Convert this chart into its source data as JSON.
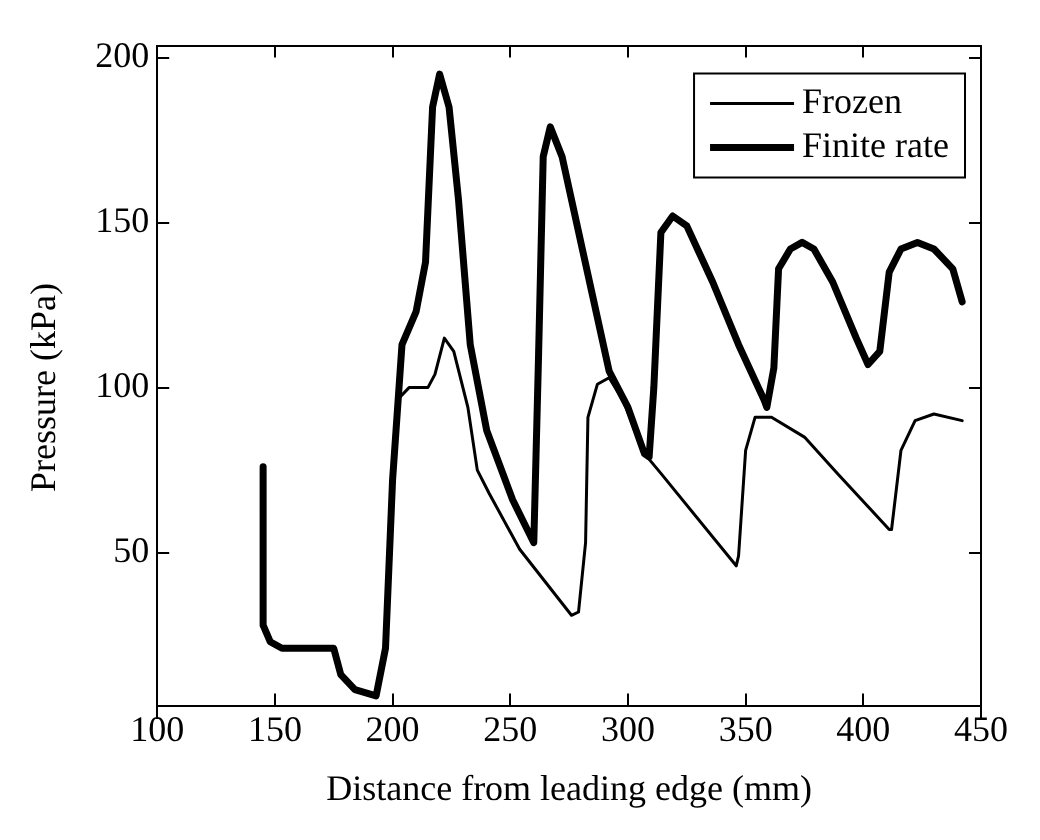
{
  "chart_data": {
    "type": "line",
    "xlabel": "Distance from leading edge (mm)",
    "ylabel": "Pressure (kPa)",
    "xlim": [
      100,
      450
    ],
    "ylim": [
      0,
      200
    ],
    "xticks": [
      100,
      150,
      200,
      250,
      300,
      350,
      400,
      450
    ],
    "yticks": [
      50,
      100,
      150,
      200
    ],
    "grid": false,
    "legend": "top right",
    "marker": "none",
    "line_style": "solid",
    "series": [
      {
        "name": "Frozen",
        "color": "#000000",
        "x": [
          145,
          145,
          148,
          153,
          175,
          178,
          184,
          193,
          197,
          200,
          203,
          207,
          215,
          218,
          222,
          226,
          232,
          236,
          241,
          254,
          276,
          279,
          282,
          283,
          287,
          292,
          298,
          303,
          307,
          314,
          346,
          347,
          350,
          354,
          361,
          375,
          389,
          411,
          412,
          416,
          422,
          430,
          442
        ],
        "values": [
          76,
          28,
          23,
          21,
          21,
          13,
          8.5,
          6.6,
          21,
          72,
          97,
          100,
          100,
          104,
          115,
          111,
          94,
          75,
          68,
          51,
          31,
          32,
          53,
          91,
          101,
          103,
          96,
          87,
          80,
          74,
          46,
          49,
          81,
          91,
          91,
          85,
          74,
          57,
          57,
          81,
          90,
          92,
          90
        ]
      },
      {
        "name": "Finite rate",
        "color": "#000000",
        "x": [
          145,
          145,
          148,
          153,
          175,
          178,
          184,
          193,
          197,
          200,
          204,
          210,
          214,
          217,
          220,
          224,
          228,
          233,
          240,
          251,
          260,
          262,
          264,
          267,
          272,
          292,
          300,
          307,
          309,
          311,
          314,
          319,
          325,
          336,
          347,
          358,
          359,
          362,
          364,
          369,
          374,
          379,
          387,
          397,
          402,
          407,
          411,
          416,
          423,
          430,
          438,
          442
        ],
        "values": [
          76,
          28,
          23,
          21,
          21,
          13,
          8.5,
          6.6,
          21,
          72,
          113,
          123,
          138,
          185,
          195,
          185,
          157,
          113,
          87,
          66,
          53,
          109,
          170,
          179,
          170,
          105,
          94,
          80,
          79,
          100,
          147,
          152,
          149,
          132,
          113,
          96,
          94,
          106,
          136,
          142,
          144,
          142,
          132,
          115,
          107,
          111,
          135,
          142,
          144,
          142,
          136,
          126
        ]
      }
    ]
  }
}
